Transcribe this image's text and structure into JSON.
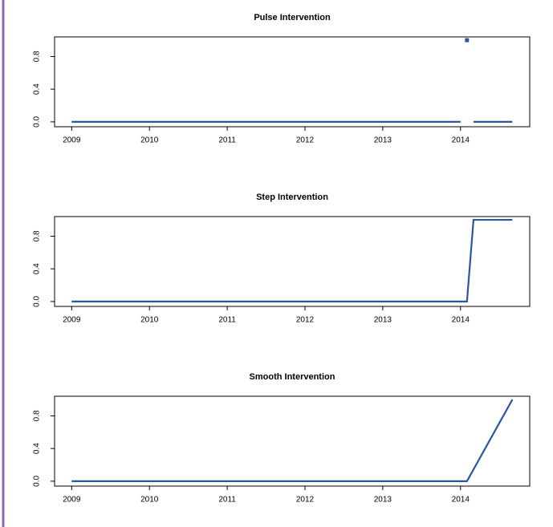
{
  "chart_data": [
    {
      "type": "line",
      "title": "Pulse Intervention",
      "x": [
        2009,
        2014,
        2014.04,
        2014.083,
        2014.125,
        2014.167,
        2014.667
      ],
      "series": [
        {
          "color": "#2a56a0",
          "values": [
            0,
            0,
            null,
            1,
            null,
            0,
            0
          ]
        }
      ],
      "xlim": [
        2008.78,
        2014.89
      ],
      "xticks": [
        2009,
        2010,
        2011,
        2012,
        2013,
        2014
      ],
      "ylim": [
        -0.06,
        1.04
      ],
      "yticks": [
        {
          "value": 0,
          "label": "0.0"
        },
        {
          "value": 0.4,
          "label": "0.4"
        },
        {
          "value": 0.8,
          "label": "0.8"
        }
      ]
    },
    {
      "type": "line",
      "title": "Step Intervention",
      "x": [
        2009,
        2014.083,
        2014.167,
        2014.667
      ],
      "series": [
        {
          "color": "#2a56a0",
          "values": [
            0,
            0,
            1,
            1
          ]
        }
      ],
      "xlim": [
        2008.78,
        2014.89
      ],
      "xticks": [
        2009,
        2010,
        2011,
        2012,
        2013,
        2014
      ],
      "ylim": [
        -0.06,
        1.04
      ],
      "yticks": [
        {
          "value": 0,
          "label": "0.0"
        },
        {
          "value": 0.4,
          "label": "0.4"
        },
        {
          "value": 0.8,
          "label": "0.8"
        }
      ]
    },
    {
      "type": "line",
      "title": "Smooth Intervention",
      "x": [
        2009,
        2014.083,
        2014.667
      ],
      "series": [
        {
          "color": "#2a56a0",
          "values": [
            0,
            0,
            1
          ]
        }
      ],
      "xlim": [
        2008.78,
        2014.89
      ],
      "xticks": [
        2009,
        2010,
        2011,
        2012,
        2013,
        2014
      ],
      "ylim": [
        -0.06,
        1.04
      ],
      "yticks": [
        {
          "value": 0,
          "label": "0.0"
        },
        {
          "value": 0.4,
          "label": "0.4"
        },
        {
          "value": 0.8,
          "label": "0.8"
        }
      ]
    }
  ]
}
